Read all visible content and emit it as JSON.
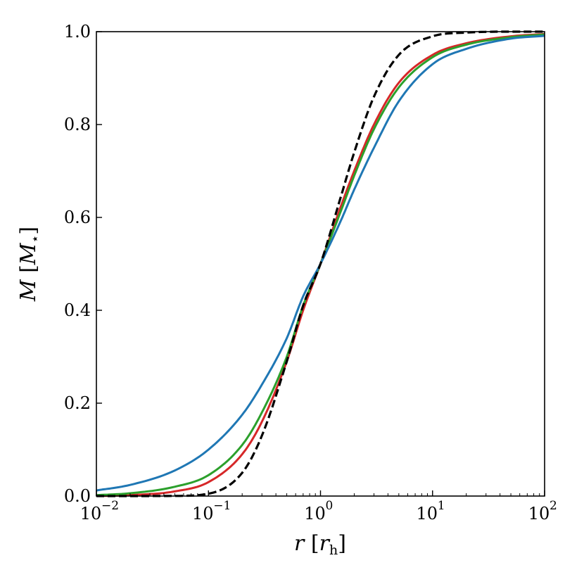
{
  "chart_data": {
    "type": "line",
    "xscale": "log",
    "xlim": [
      0.01,
      100
    ],
    "ylim": [
      0.0,
      1.0
    ],
    "xlabel": "r [r_h]",
    "ylabel": "M [M_⋆]",
    "xticks": [
      {
        "value": 0.01,
        "base": "10",
        "exp": "−2"
      },
      {
        "value": 0.1,
        "base": "10",
        "exp": "−1"
      },
      {
        "value": 1,
        "base": "10",
        "exp": "0"
      },
      {
        "value": 10,
        "base": "10",
        "exp": "1"
      },
      {
        "value": 100,
        "base": "10",
        "exp": "2"
      }
    ],
    "yticks": [
      "0.0",
      "0.2",
      "0.4",
      "0.6",
      "0.8",
      "1.0"
    ],
    "grid": false,
    "x": [
      0.01,
      0.02,
      0.05,
      0.1,
      0.2,
      0.3,
      0.5,
      0.7,
      1,
      1.5,
      2,
      3,
      5,
      10,
      20,
      50,
      100
    ],
    "series": [
      {
        "color": "#000000",
        "dash": "dashed",
        "values": [
          0.0,
          0.0,
          0.0003,
          0.005,
          0.05,
          0.13,
          0.29,
          0.41,
          0.5,
          0.64,
          0.74,
          0.86,
          0.95,
          0.99,
          0.998,
          1.0,
          1.0
        ]
      },
      {
        "color": "#d62728",
        "dash": "solid",
        "values": [
          0.0,
          0.002,
          0.01,
          0.03,
          0.09,
          0.16,
          0.29,
          0.4,
          0.5,
          0.62,
          0.7,
          0.8,
          0.89,
          0.95,
          0.975,
          0.99,
          0.995
        ]
      },
      {
        "color": "#2ca02c",
        "dash": "solid",
        "values": [
          0.002,
          0.006,
          0.02,
          0.045,
          0.11,
          0.18,
          0.3,
          0.41,
          0.5,
          0.61,
          0.69,
          0.79,
          0.88,
          0.945,
          0.972,
          0.988,
          0.994
        ]
      },
      {
        "color": "#1f77b4",
        "dash": "solid",
        "values": [
          0.012,
          0.024,
          0.055,
          0.1,
          0.175,
          0.24,
          0.34,
          0.43,
          0.5,
          0.59,
          0.66,
          0.75,
          0.85,
          0.93,
          0.963,
          0.985,
          0.991
        ]
      }
    ]
  }
}
